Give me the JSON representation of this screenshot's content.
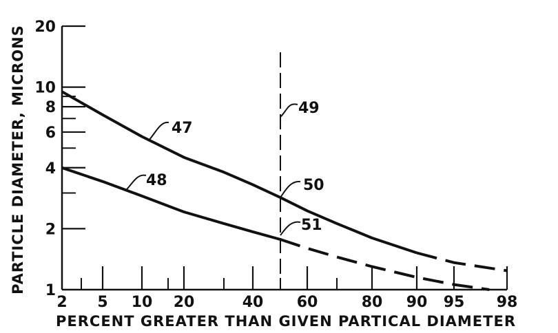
{
  "chart_data": {
    "type": "line",
    "xlabel": "PERCENT GREATER THAN GIVEN PARTICAL DIAMETER",
    "ylabel": "PARTICLE DIAMETER, MICRONS",
    "x_scale": "probability",
    "y_scale": "log",
    "xlim": [
      2,
      98
    ],
    "ylim": [
      1,
      20
    ],
    "x_ticks": [
      2,
      5,
      10,
      20,
      40,
      60,
      80,
      90,
      95,
      98
    ],
    "x_minor_ticks": [
      3,
      15,
      30,
      50,
      70
    ],
    "y_ticks": [
      1,
      2,
      4,
      6,
      8,
      10,
      20
    ],
    "y_minor_ticks": [
      3,
      5,
      7,
      9
    ],
    "grid": false,
    "series": [
      {
        "name": "47",
        "style": "solid-then-dashed",
        "dash_from_x": 90,
        "points": [
          [
            2,
            9.5
          ],
          [
            5,
            7.3
          ],
          [
            10,
            5.7
          ],
          [
            20,
            4.5
          ],
          [
            30,
            3.8
          ],
          [
            40,
            3.3
          ],
          [
            50,
            2.85
          ],
          [
            60,
            2.45
          ],
          [
            70,
            2.12
          ],
          [
            80,
            1.8
          ],
          [
            90,
            1.52
          ],
          [
            95,
            1.36
          ],
          [
            98,
            1.24
          ]
        ]
      },
      {
        "name": "48",
        "style": "solid-then-dashed",
        "dash_from_x": 50,
        "points": [
          [
            2,
            4.0
          ],
          [
            5,
            3.42
          ],
          [
            10,
            2.9
          ],
          [
            20,
            2.42
          ],
          [
            30,
            2.12
          ],
          [
            40,
            1.93
          ],
          [
            50,
            1.77
          ],
          [
            60,
            1.6
          ],
          [
            70,
            1.45
          ],
          [
            80,
            1.3
          ],
          [
            90,
            1.15
          ],
          [
            95,
            1.06
          ],
          [
            97,
            1.0
          ]
        ]
      }
    ],
    "reference_line": {
      "name": "49",
      "x": 50,
      "style": "dashed"
    },
    "annotations": [
      {
        "label": "47",
        "target": "line 47"
      },
      {
        "label": "48",
        "target": "line 48"
      },
      {
        "label": "49",
        "target": "vertical reference line at 50%"
      },
      {
        "label": "50",
        "target": "intersection of line 47 and line 49"
      },
      {
        "label": "51",
        "target": "intersection of line 48 and line 49"
      }
    ]
  }
}
